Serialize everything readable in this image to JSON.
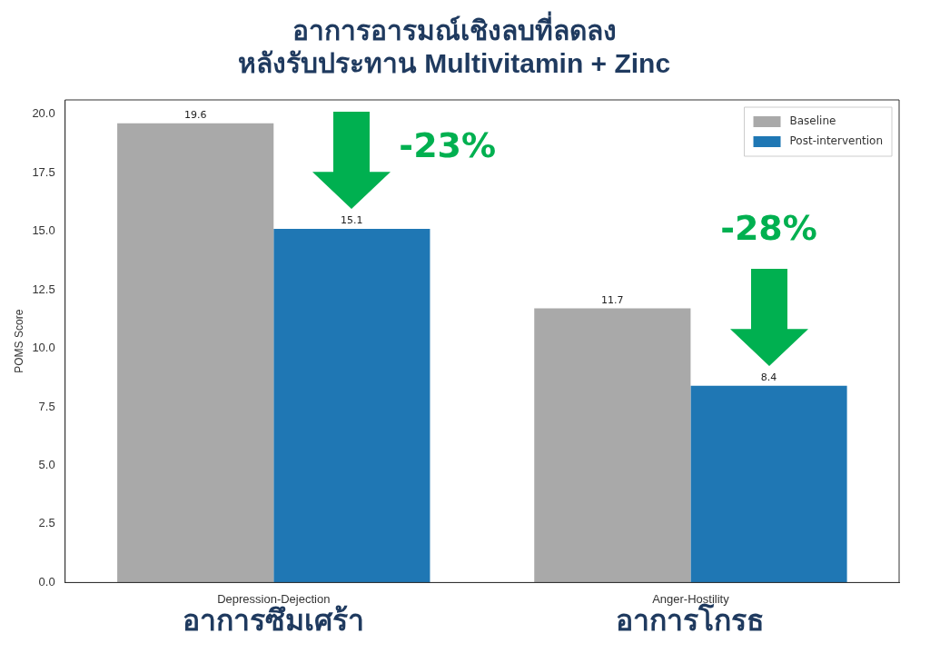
{
  "chart_data": {
    "type": "bar",
    "title": "อาการอารมณ์เชิงลบที่ลดลง\nหลังรับประทาน Multivitamin + Zinc",
    "ylabel": "POMS Score",
    "categories": [
      "Depression-Dejection",
      "Anger-Hostility"
    ],
    "series": [
      {
        "name": "Baseline",
        "color": "#a9a9a9",
        "values": [
          19.6,
          11.7
        ]
      },
      {
        "name": "Post-intervention",
        "color": "#1f77b4",
        "values": [
          15.1,
          8.4
        ]
      }
    ],
    "ylim": [
      0,
      20.6
    ],
    "yticks": [
      {
        "value": 0,
        "label": "0.0"
      },
      {
        "value": 2.5,
        "label": "2.5"
      },
      {
        "value": 5,
        "label": "5.0"
      },
      {
        "value": 7.5,
        "label": "7.5"
      },
      {
        "value": 10,
        "label": "10.0"
      },
      {
        "value": 12.5,
        "label": "12.5"
      },
      {
        "value": 15,
        "label": "15.0"
      },
      {
        "value": 17.5,
        "label": "17.5"
      },
      {
        "value": 20,
        "label": "20.0"
      }
    ],
    "data_labels": true,
    "legend": "top right",
    "grid": false,
    "annotations": [
      "-23%",
      "-28%",
      "อาการซึมเศร้า",
      "อาการโกรธ"
    ]
  }
}
